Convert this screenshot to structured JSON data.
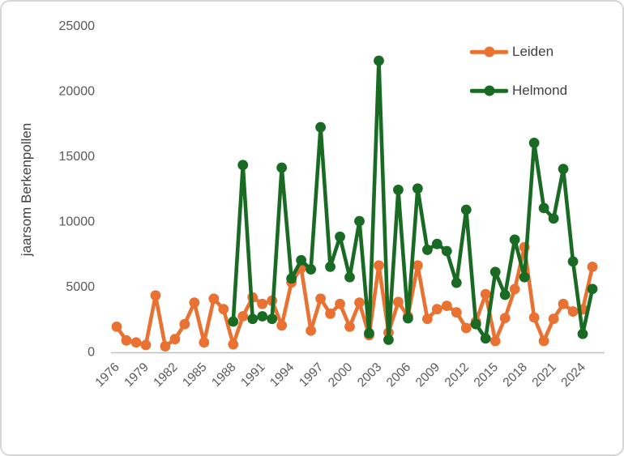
{
  "window": {
    "background": "#ffffff",
    "border_color": "#d6d6d6"
  },
  "colors": {
    "leiden": "#E97132",
    "helmond": "#196B24",
    "axis_line": "#bfbfbf",
    "tick_text": "#595959",
    "label_text": "#404040"
  },
  "legend": {
    "items": [
      {
        "label": "Leiden",
        "color": "#E97132"
      },
      {
        "label": "Helmond",
        "color": "#196B24"
      }
    ]
  },
  "chart_data": {
    "type": "line",
    "title": "",
    "xlabel": "",
    "ylabel": "jaarsom Berkenpollen",
    "ylim": [
      0,
      25000
    ],
    "yticks": [
      0,
      5000,
      10000,
      15000,
      20000,
      25000
    ],
    "grid": false,
    "marker": "circle",
    "legend_position": "top-right",
    "xtick_labels": [
      "1976",
      "1979",
      "1982",
      "1985",
      "1988",
      "1991",
      "1994",
      "1997",
      "2000",
      "2003",
      "2006",
      "2009",
      "2012",
      "2015",
      "2018",
      "2021",
      "2024"
    ],
    "categories": [
      1976,
      1977,
      1978,
      1979,
      1980,
      1981,
      1982,
      1983,
      1984,
      1985,
      1986,
      1987,
      1988,
      1989,
      1990,
      1991,
      1992,
      1993,
      1994,
      1995,
      1996,
      1997,
      1998,
      1999,
      2000,
      2001,
      2002,
      2003,
      2004,
      2005,
      2006,
      2007,
      2008,
      2009,
      2010,
      2011,
      2012,
      2013,
      2014,
      2015,
      2016,
      2017,
      2018,
      2019,
      2020,
      2021,
      2022,
      2023,
      2024,
      2025
    ],
    "series": [
      {
        "name": "Leiden",
        "color": "#E97132",
        "values": [
          1900,
          850,
          700,
          500,
          4300,
          400,
          950,
          2100,
          3750,
          700,
          4050,
          3250,
          550,
          2700,
          4150,
          3650,
          3900,
          2000,
          5300,
          6400,
          1600,
          4050,
          2900,
          3650,
          1900,
          3750,
          1250,
          6600,
          1450,
          3800,
          2700,
          6600,
          2500,
          3250,
          3500,
          3000,
          1800,
          2300,
          4400,
          800,
          2570,
          4790,
          8000,
          2610,
          810,
          2510,
          3650,
          3070,
          3230,
          6500
        ]
      },
      {
        "name": "Helmond",
        "color": "#196B24",
        "values": [
          null,
          null,
          null,
          null,
          null,
          null,
          null,
          null,
          null,
          null,
          null,
          null,
          2300,
          14300,
          2500,
          2700,
          2500,
          14100,
          5600,
          7000,
          6300,
          17200,
          6500,
          8800,
          5700,
          10000,
          1400,
          22300,
          900,
          12400,
          2550,
          12500,
          7800,
          8250,
          7700,
          5270,
          10870,
          2100,
          1000,
          6100,
          4350,
          8580,
          5700,
          16000,
          11000,
          10200,
          14000,
          6900,
          1350,
          4800
        ]
      }
    ]
  }
}
